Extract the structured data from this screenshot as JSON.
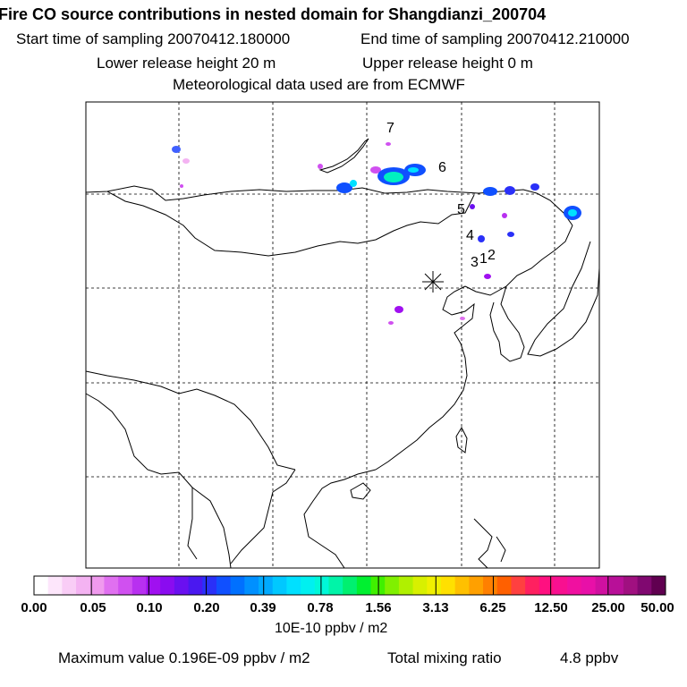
{
  "header": {
    "title": "Fire CO source contributions in nested domain for Shangdianzi_200704",
    "start_label": "Start time of sampling 20070412.180000",
    "end_label": "End time of sampling 20070412.210000",
    "lower_release": "Lower release height   20 m",
    "upper_release": "Upper release height    0 m",
    "met_data": "Meteorological data used are from ECMWF"
  },
  "map": {
    "receptor_marker": "receptor-star",
    "source_labels": [
      "7",
      "6",
      "5",
      "4",
      "3",
      "1",
      "2"
    ]
  },
  "colorbar": {
    "ticks": [
      "0.00",
      "0.05",
      "0.10",
      "0.20",
      "0.39",
      "0.78",
      "1.56",
      "3.13",
      "6.25",
      "12.50",
      "25.00",
      "50.00"
    ],
    "colors": [
      "#ffffff",
      "#fde6fb",
      "#f9cdf6",
      "#f4b3f2",
      "#f09aee",
      "#e070f0",
      "#d050f0",
      "#b830f0",
      "#a010f0",
      "#8a0cf0",
      "#6a10f0",
      "#4a18f0",
      "#2a30f8",
      "#1050ff",
      "#0070ff",
      "#0090ff",
      "#00aaff",
      "#00c8ff",
      "#00e0ff",
      "#00f0f0",
      "#00f8d8",
      "#00f4a8",
      "#00f070",
      "#00f030",
      "#40f000",
      "#80f000",
      "#b0f000",
      "#d8f000",
      "#f0f000",
      "#ffe000",
      "#ffc000",
      "#ffa000",
      "#ff8000",
      "#ff6000",
      "#ff4040",
      "#ff2060",
      "#ff1080",
      "#f81090",
      "#f010a0",
      "#e810a8",
      "#d010a0",
      "#b81098",
      "#a01080",
      "#800870",
      "#600050"
    ],
    "unit": "10E-10 ppbv / m2"
  },
  "footer": {
    "max_label": "Maximum value  0.196E-09 ppbv / m2",
    "total_label": "Total mixing ratio",
    "total_value": "4.8 ppbv"
  }
}
